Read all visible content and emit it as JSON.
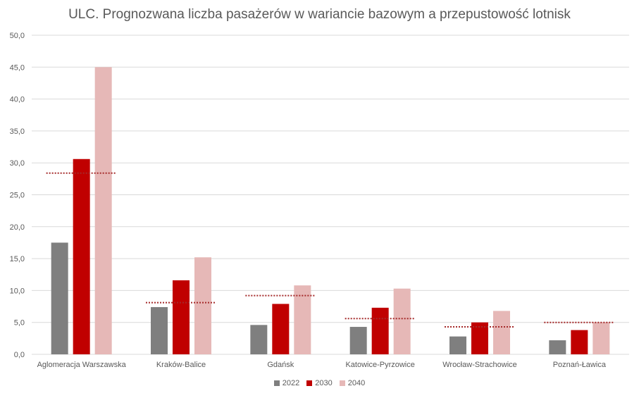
{
  "title": "ULC. Prognozwana liczba pasażerów w wariancie bazowym a przepustowość lotnisk",
  "chart_data": {
    "type": "bar",
    "title": "ULC. Prognozwana liczba pasażerów w wariancie bazowym a przepustowość lotnisk",
    "xlabel": "",
    "ylabel": "",
    "ylim": [
      0,
      50
    ],
    "yticks": [
      "0,0",
      "5,0",
      "10,0",
      "15,0",
      "20,0",
      "25,0",
      "30,0",
      "35,0",
      "40,0",
      "45,0",
      "50,0"
    ],
    "grid": true,
    "legend_position": "bottom",
    "categories": [
      "Aglomeracja Warszawska",
      "Kraków-Balice",
      "Gdańsk",
      "Katowice-Pyrzowice",
      "Wrocław-Strachowice",
      "Poznań-Ławica"
    ],
    "series": [
      {
        "name": "2022",
        "color": "#7f7f7f",
        "values": [
          17.5,
          7.4,
          4.6,
          4.3,
          2.8,
          2.2
        ]
      },
      {
        "name": "2030",
        "color": "#c00000",
        "values": [
          30.6,
          11.6,
          7.9,
          7.3,
          5.0,
          3.8
        ]
      },
      {
        "name": "2040",
        "color": "#e6b8b7",
        "values": [
          45.0,
          15.2,
          10.8,
          10.3,
          6.8,
          5.0
        ]
      }
    ],
    "capacity": {
      "color": "#a52a2a",
      "style": "dotted",
      "values": [
        28.4,
        8.1,
        9.2,
        5.6,
        4.3,
        5.0
      ]
    }
  }
}
